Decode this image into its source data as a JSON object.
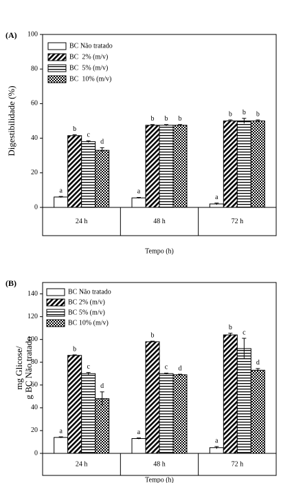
{
  "chart_data": [
    {
      "type": "bar",
      "panel_label": "(A)",
      "ylabel": [
        "Digestibilidade (%)"
      ],
      "xlabel": "Tempo (h)",
      "categories": [
        "24 h",
        "48 h",
        "72 h"
      ],
      "ylim": [
        0,
        100
      ],
      "yticks": [
        0,
        20,
        40,
        60,
        80,
        100
      ],
      "legend": "upper left",
      "series": [
        {
          "name": "BC Não tratado",
          "color": "#ffffff",
          "pattern": "none",
          "values": [
            6,
            5.5,
            2
          ],
          "errors": [
            0.3,
            0.3,
            0.5
          ],
          "letters": [
            "a",
            "a",
            "a"
          ]
        },
        {
          "name": "BC  2% (m/v)",
          "color": "#000000",
          "pattern": "diagonal",
          "values": [
            41.5,
            47.5,
            50
          ],
          "errors": [
            0.5,
            0.4,
            0.6
          ],
          "letters": [
            "b",
            "b",
            "b"
          ]
        },
        {
          "name": "BC  5% (m/v)",
          "color": "#000000",
          "pattern": "horizontal",
          "values": [
            38,
            47.5,
            50
          ],
          "errors": [
            0.5,
            0.4,
            1.5
          ],
          "letters": [
            "c",
            "b",
            "b"
          ]
        },
        {
          "name": "BC  10% (m/v)",
          "color": "#000000",
          "pattern": "dots",
          "values": [
            33,
            47.5,
            50
          ],
          "errors": [
            1.5,
            0.4,
            0.6
          ],
          "letters": [
            "d",
            "b",
            "b"
          ]
        }
      ]
    },
    {
      "type": "bar",
      "panel_label": "(B)",
      "ylabel": [
        "mg Glicose/",
        "g BC Não tratado"
      ],
      "xlabel": "Tempo (h)",
      "categories": [
        "24 h",
        "48 h",
        "72 h"
      ],
      "ylim": [
        0,
        150
      ],
      "yticks": [
        0,
        20,
        40,
        60,
        80,
        100,
        120,
        140
      ],
      "legend": "upper left",
      "series": [
        {
          "name": "BC Não tratado",
          "color": "#ffffff",
          "pattern": "none",
          "values": [
            14,
            13,
            5
          ],
          "errors": [
            0.5,
            0.5,
            1
          ],
          "letters": [
            "a",
            "a",
            "a"
          ]
        },
        {
          "name": "BC 2% (m/v)",
          "color": "#000000",
          "pattern": "diagonal",
          "values": [
            86,
            98,
            104
          ],
          "errors": [
            0.5,
            0.5,
            1.5
          ],
          "letters": [
            "b",
            "b",
            "b"
          ]
        },
        {
          "name": "BC 5% (m/v)",
          "color": "#000000",
          "pattern": "horizontal",
          "values": [
            70,
            70,
            92
          ],
          "errors": [
            1,
            0.5,
            9
          ],
          "letters": [
            "c",
            "c",
            "c"
          ]
        },
        {
          "name": "BC 10% (m/v)",
          "color": "#000000",
          "pattern": "dots",
          "values": [
            48,
            69,
            73
          ],
          "errors": [
            6,
            0.5,
            1.5
          ],
          "letters": [
            "d",
            "d",
            "d"
          ]
        }
      ]
    }
  ]
}
